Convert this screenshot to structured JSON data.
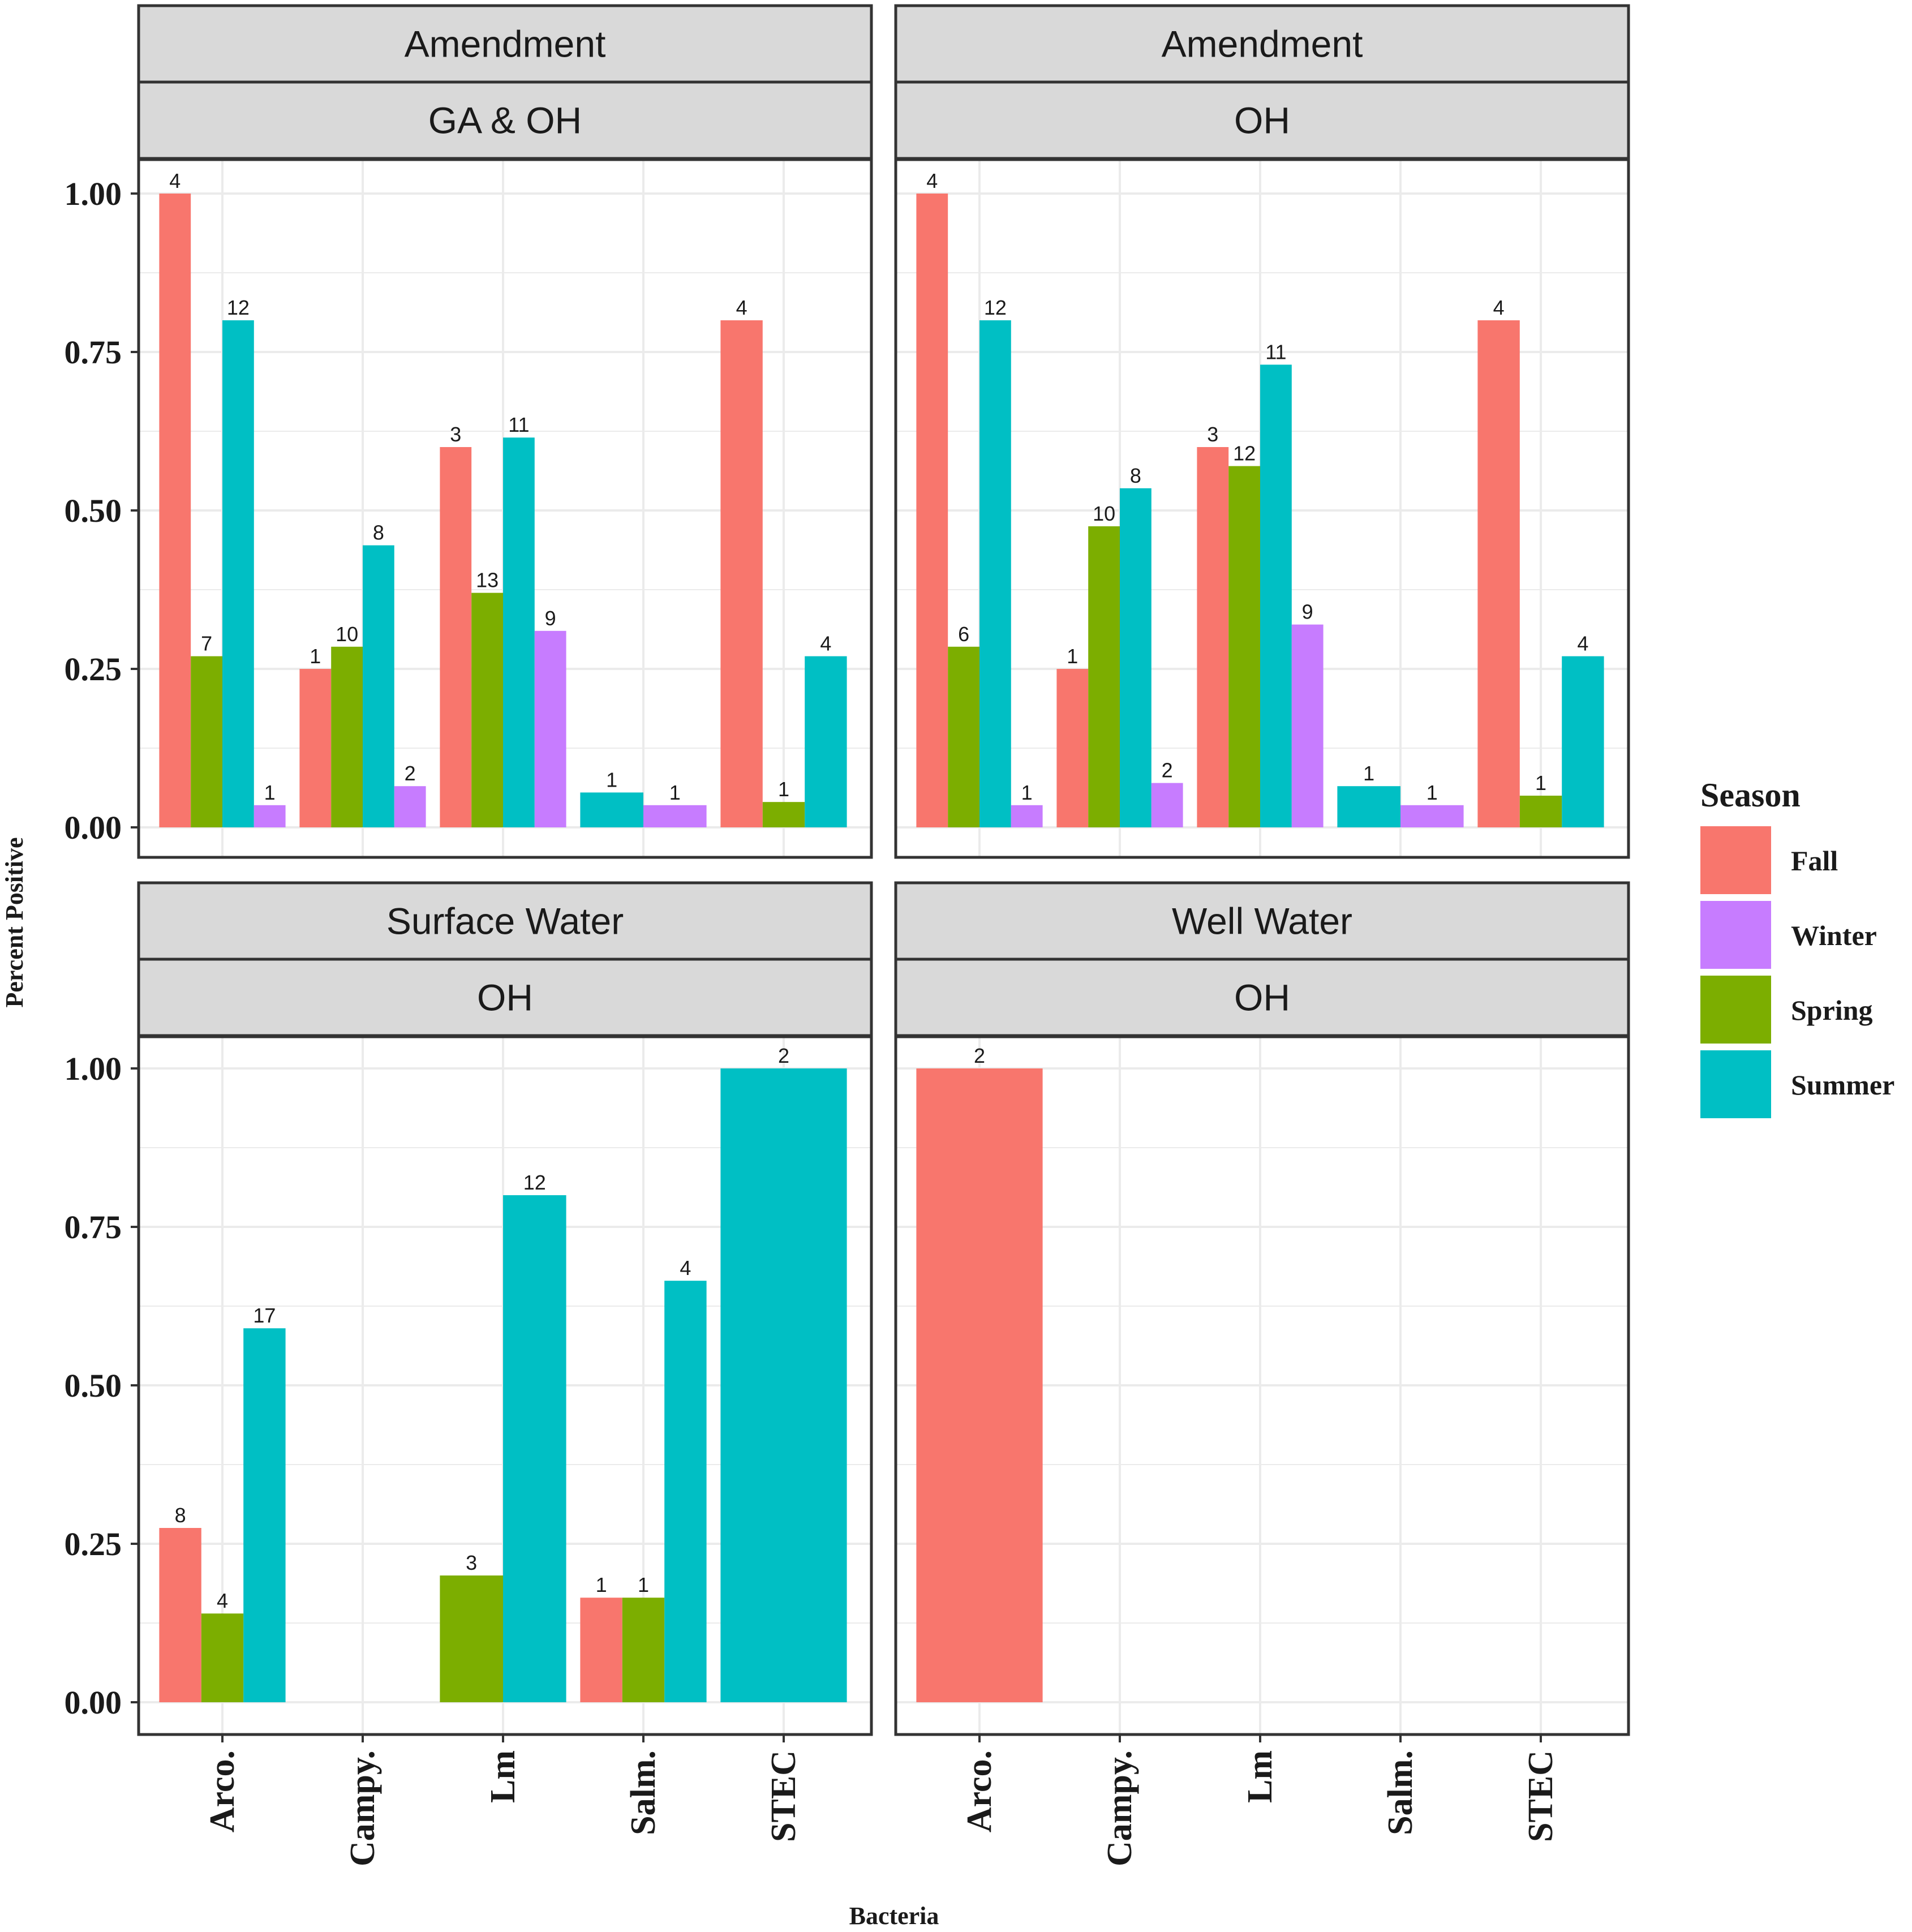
{
  "chart_data": {
    "type": "bar",
    "xlabel": "Bacteria",
    "ylabel": "Percent Positive",
    "ylim": [
      0,
      1.05
    ],
    "yticks": [
      "0.00",
      "0.25",
      "0.50",
      "0.75",
      "1.00"
    ],
    "categories": [
      "Arco.",
      "Campy.",
      "Lm",
      "Salm.",
      "STEC"
    ],
    "legend": {
      "title": "Season",
      "position": "right",
      "entries": [
        {
          "name": "Fall",
          "color": "#F8766D"
        },
        {
          "name": "Winter",
          "color": "#C77CFF"
        },
        {
          "name": "Spring",
          "color": "#7CAE00"
        },
        {
          "name": "Summer",
          "color": "#00BFC4"
        }
      ]
    },
    "panels": [
      {
        "strip_top": "Amendment",
        "strip_bottom": "GA & OH",
        "groups": [
          {
            "category": "Arco.",
            "bars": [
              {
                "season": "Fall",
                "value": 1.0,
                "label": "4"
              },
              {
                "season": "Spring",
                "value": 0.27,
                "label": "7"
              },
              {
                "season": "Summer",
                "value": 0.8,
                "label": "12"
              },
              {
                "season": "Winter",
                "value": 0.035,
                "label": "1"
              }
            ]
          },
          {
            "category": "Campy.",
            "bars": [
              {
                "season": "Fall",
                "value": 0.25,
                "label": "1"
              },
              {
                "season": "Spring",
                "value": 0.285,
                "label": "10"
              },
              {
                "season": "Summer",
                "value": 0.445,
                "label": "8"
              },
              {
                "season": "Winter",
                "value": 0.065,
                "label": "2"
              }
            ]
          },
          {
            "category": "Lm",
            "bars": [
              {
                "season": "Fall",
                "value": 0.6,
                "label": "3"
              },
              {
                "season": "Spring",
                "value": 0.37,
                "label": "13"
              },
              {
                "season": "Summer",
                "value": 0.615,
                "label": "11"
              },
              {
                "season": "Winter",
                "value": 0.31,
                "label": "9"
              }
            ]
          },
          {
            "category": "Salm.",
            "bars": [
              {
                "season": "Summer",
                "value": 0.055,
                "label": "1"
              },
              {
                "season": "Winter",
                "value": 0.035,
                "label": "1"
              }
            ]
          },
          {
            "category": "STEC",
            "bars": [
              {
                "season": "Fall",
                "value": 0.8,
                "label": "4"
              },
              {
                "season": "Spring",
                "value": 0.04,
                "label": "1"
              },
              {
                "season": "Summer",
                "value": 0.27,
                "label": "4"
              }
            ]
          }
        ]
      },
      {
        "strip_top": "Amendment",
        "strip_bottom": "OH",
        "groups": [
          {
            "category": "Arco.",
            "bars": [
              {
                "season": "Fall",
                "value": 1.0,
                "label": "4"
              },
              {
                "season": "Spring",
                "value": 0.285,
                "label": "6"
              },
              {
                "season": "Summer",
                "value": 0.8,
                "label": "12"
              },
              {
                "season": "Winter",
                "value": 0.035,
                "label": "1"
              }
            ]
          },
          {
            "category": "Campy.",
            "bars": [
              {
                "season": "Fall",
                "value": 0.25,
                "label": "1"
              },
              {
                "season": "Spring",
                "value": 0.475,
                "label": "10"
              },
              {
                "season": "Summer",
                "value": 0.535,
                "label": "8"
              },
              {
                "season": "Winter",
                "value": 0.07,
                "label": "2"
              }
            ]
          },
          {
            "category": "Lm",
            "bars": [
              {
                "season": "Fall",
                "value": 0.6,
                "label": "3"
              },
              {
                "season": "Spring",
                "value": 0.57,
                "label": "12"
              },
              {
                "season": "Summer",
                "value": 0.73,
                "label": "11"
              },
              {
                "season": "Winter",
                "value": 0.32,
                "label": "9"
              }
            ]
          },
          {
            "category": "Salm.",
            "bars": [
              {
                "season": "Summer",
                "value": 0.065,
                "label": "1"
              },
              {
                "season": "Winter",
                "value": 0.035,
                "label": "1"
              }
            ]
          },
          {
            "category": "STEC",
            "bars": [
              {
                "season": "Fall",
                "value": 0.8,
                "label": "4"
              },
              {
                "season": "Spring",
                "value": 0.05,
                "label": "1"
              },
              {
                "season": "Summer",
                "value": 0.27,
                "label": "4"
              }
            ]
          }
        ]
      },
      {
        "strip_top": "Surface Water",
        "strip_bottom": "OH",
        "groups": [
          {
            "category": "Arco.",
            "bars": [
              {
                "season": "Fall",
                "value": 0.275,
                "label": "8"
              },
              {
                "season": "Spring",
                "value": 0.14,
                "label": "4"
              },
              {
                "season": "Summer",
                "value": 0.59,
                "label": "17"
              }
            ]
          },
          {
            "category": "Campy.",
            "bars": []
          },
          {
            "category": "Lm",
            "bars": [
              {
                "season": "Spring",
                "value": 0.2,
                "label": "3"
              },
              {
                "season": "Summer",
                "value": 0.8,
                "label": "12"
              }
            ]
          },
          {
            "category": "Salm.",
            "bars": [
              {
                "season": "Fall",
                "value": 0.165,
                "label": "1"
              },
              {
                "season": "Spring",
                "value": 0.165,
                "label": "1"
              },
              {
                "season": "Summer",
                "value": 0.665,
                "label": "4"
              }
            ]
          },
          {
            "category": "STEC",
            "bars": [
              {
                "season": "Summer",
                "value": 1.0,
                "label": "2"
              }
            ]
          }
        ]
      },
      {
        "strip_top": "Well Water",
        "strip_bottom": "OH",
        "groups": [
          {
            "category": "Arco.",
            "bars": [
              {
                "season": "Fall",
                "value": 1.0,
                "label": "2"
              }
            ]
          },
          {
            "category": "Campy.",
            "bars": []
          },
          {
            "category": "Lm",
            "bars": []
          },
          {
            "category": "Salm.",
            "bars": []
          },
          {
            "category": "STEC",
            "bars": []
          }
        ]
      }
    ]
  }
}
